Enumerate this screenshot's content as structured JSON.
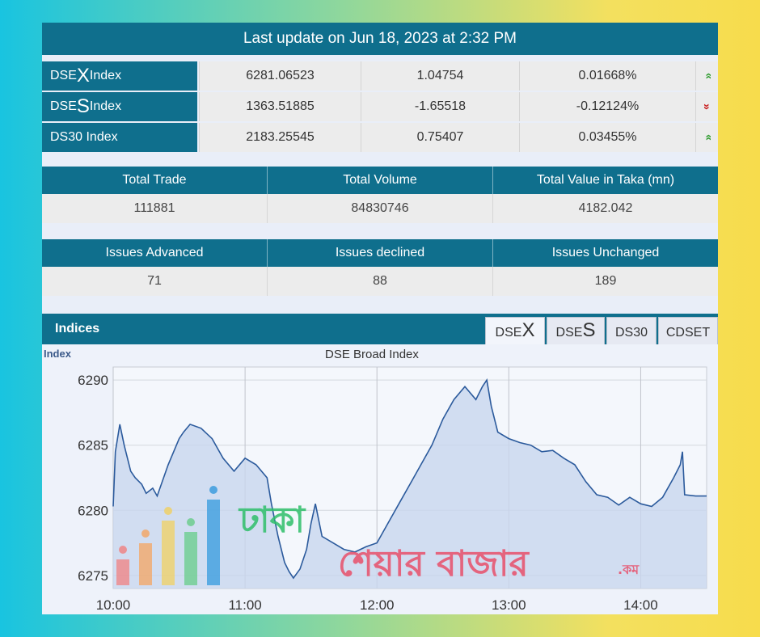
{
  "banner": {
    "text": "Last update on Jun 18, 2023 at 2:32 PM"
  },
  "indices": [
    {
      "prefix": "DSE",
      "letter": "X",
      "suffix": " Index",
      "value": "6281.06523",
      "change": "1.04754",
      "percent": "0.01668%",
      "trend": "up",
      "arrow": "»"
    },
    {
      "prefix": "DSE",
      "letter": "S",
      "suffix": " Index",
      "value": "1363.51885",
      "change": "-1.65518",
      "percent": "-0.12124%",
      "trend": "down",
      "arrow": "»"
    },
    {
      "prefix": "DS30 Index",
      "letter": "",
      "suffix": "",
      "value": "2183.25545",
      "change": "0.75407",
      "percent": "0.03455%",
      "trend": "up",
      "arrow": "»"
    }
  ],
  "trade_stats": {
    "headers": [
      "Total Trade",
      "Total Volume",
      "Total Value in Taka (mn)"
    ],
    "values": [
      "111881",
      "84830746",
      "4182.042"
    ]
  },
  "issue_stats": {
    "headers": [
      "Issues Advanced",
      "Issues declined",
      "Issues Unchanged"
    ],
    "values": [
      "71",
      "88",
      "189"
    ]
  },
  "chart_section": {
    "title": "Indices",
    "tabs": [
      {
        "prefix": "DSE",
        "letter": "X",
        "active": true
      },
      {
        "prefix": "DSE",
        "letter": "S",
        "active": false
      },
      {
        "prefix": "DS30",
        "letter": "",
        "active": false
      },
      {
        "prefix": "CDSET",
        "letter": "",
        "active": false
      }
    ]
  },
  "watermark": {
    "line1": "ঢাকা",
    "line2": "শেয়ার বাজার",
    "suffix": ".কম"
  },
  "colors": {
    "header": "#0f6f8d",
    "line": "#2b5a9c",
    "fill": "#c8d6ee",
    "up": "#2e9b2e",
    "down": "#c81c1c"
  },
  "chart_data": {
    "type": "area",
    "title": "DSE Broad Index",
    "ylabel": "Index",
    "xlabel": "",
    "xlim": [
      "10:00",
      "14:30"
    ],
    "ylim": [
      6274,
      6291
    ],
    "yticks": [
      6290,
      6285,
      6280,
      6275
    ],
    "xticks": [
      "10:00",
      "11:00",
      "12:00",
      "13:00",
      "14:00"
    ],
    "grid": true,
    "series": [
      {
        "x": [
          "10:00",
          "10:01",
          "10:03",
          "10:05",
          "10:08",
          "10:10",
          "10:13",
          "10:15",
          "10:18",
          "10:20",
          "10:25",
          "10:30",
          "10:32",
          "10:35",
          "10:40",
          "10:45",
          "10:50",
          "10:55",
          "11:00",
          "11:05",
          "11:10",
          "11:12",
          "11:15",
          "11:18",
          "11:20",
          "11:22",
          "11:25",
          "11:28",
          "11:30",
          "11:32",
          "11:35",
          "11:40",
          "11:45",
          "11:50",
          "11:55",
          "12:00",
          "12:05",
          "12:10",
          "12:15",
          "12:20",
          "12:25",
          "12:30",
          "12:35",
          "12:40",
          "12:45",
          "12:48",
          "12:50",
          "12:52",
          "12:55",
          "13:00",
          "13:05",
          "13:10",
          "13:15",
          "13:20",
          "13:25",
          "13:30",
          "13:35",
          "13:40",
          "13:45",
          "13:50",
          "13:55",
          "14:00",
          "14:05",
          "14:10",
          "14:15",
          "14:18",
          "14:19",
          "14:20",
          "14:25",
          "14:30"
        ],
        "y": [
          6280.3,
          6284.5,
          6286.6,
          6285,
          6283,
          6282.5,
          6282,
          6281.3,
          6281.7,
          6281.1,
          6283.5,
          6285.5,
          6286,
          6286.6,
          6286.3,
          6285.5,
          6284,
          6283,
          6284,
          6283.5,
          6282.5,
          6280.5,
          6278,
          6276,
          6275.3,
          6274.8,
          6275.5,
          6277,
          6279,
          6280.5,
          6278,
          6277.5,
          6277,
          6276.8,
          6277.2,
          6277.5,
          6279,
          6280.5,
          6282,
          6283.5,
          6285,
          6287,
          6288.5,
          6289.5,
          6288.5,
          6289.5,
          6290,
          6288,
          6286,
          6285.5,
          6285.2,
          6285,
          6284.5,
          6284.6,
          6284,
          6283.5,
          6282.2,
          6281.2,
          6281,
          6280.4,
          6281,
          6280.5,
          6280.3,
          6281,
          6282.5,
          6283.5,
          6284.5,
          6281.2,
          6281.1,
          6281.1
        ]
      }
    ]
  }
}
